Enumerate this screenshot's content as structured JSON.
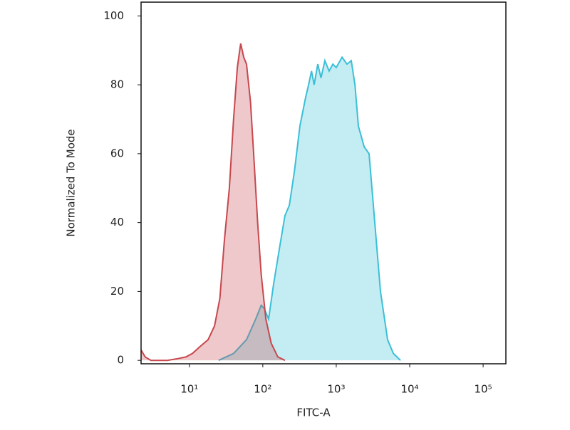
{
  "chart_data": {
    "type": "area",
    "x_label": "FITC-A",
    "y_label": "Normalized To Mode",
    "log_x": true,
    "xlim": [
      2.2,
      204000
    ],
    "ylim": [
      -1,
      104
    ],
    "xticks": [
      {
        "value": 10,
        "label": "10¹"
      },
      {
        "value": 100,
        "label": "10²"
      },
      {
        "value": 1000,
        "label": "10³"
      },
      {
        "value": 10000,
        "label": "10⁴"
      },
      {
        "value": 100000,
        "label": "10⁵"
      }
    ],
    "yticks": [
      0,
      20,
      40,
      60,
      80,
      100
    ],
    "series": [
      {
        "color": "#3bbfd6",
        "x": [
          25,
          40,
          60,
          80,
          95,
          105,
          120,
          140,
          170,
          200,
          230,
          270,
          320,
          380,
          420,
          460,
          500,
          560,
          620,
          700,
          800,
          900,
          1000,
          1200,
          1400,
          1600,
          1800,
          2000,
          2400,
          2800,
          3200,
          4000,
          5000,
          6000,
          7500
        ],
        "values": [
          0,
          2,
          6,
          12,
          16,
          15,
          12,
          22,
          33,
          42,
          45,
          55,
          68,
          76,
          80,
          84,
          80,
          86,
          82,
          87,
          84,
          86,
          85,
          88,
          86,
          87,
          80,
          68,
          62,
          60,
          45,
          20,
          6,
          2,
          0
        ]
      },
      {
        "color": "#c6484e",
        "x": [
          2.2,
          2.5,
          3,
          5,
          7,
          9,
          11,
          14,
          18,
          22,
          26,
          30,
          35,
          40,
          45,
          50,
          55,
          60,
          68,
          75,
          85,
          95,
          110,
          130,
          160,
          200
        ],
        "values": [
          3,
          1,
          0,
          0,
          0.5,
          1,
          2,
          4,
          6,
          10,
          18,
          35,
          50,
          70,
          85,
          92,
          88,
          86,
          75,
          60,
          40,
          25,
          12,
          5,
          1,
          0
        ]
      }
    ]
  }
}
